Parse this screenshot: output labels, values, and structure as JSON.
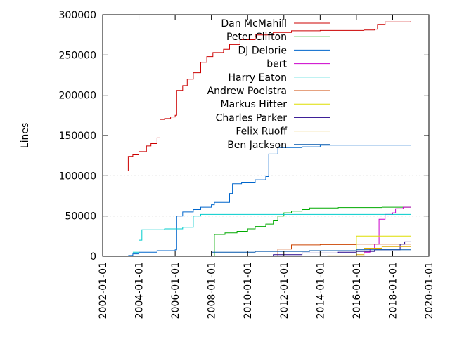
{
  "chart_data": {
    "type": "line",
    "ylabel": "Lines",
    "xlabel": "",
    "title": "",
    "xlim": [
      "2002-01-01",
      "2020-01-01"
    ],
    "ylim": [
      0,
      300000
    ],
    "x_ticks": [
      "2002-01-01",
      "2004-01-01",
      "2006-01-01",
      "2008-01-01",
      "2010-01-01",
      "2012-01-01",
      "2014-01-01",
      "2016-01-01",
      "2018-01-01",
      "2020-01-01"
    ],
    "y_ticks": [
      0,
      50000,
      100000,
      150000,
      200000,
      250000,
      300000
    ],
    "grid": {
      "y_dashed_lines": [
        50000,
        100000
      ]
    },
    "legend_position": "top-right",
    "series": [
      {
        "name": "Dan McMahill",
        "color": "#cc0000",
        "points": [
          [
            "2003-03-01",
            106000
          ],
          [
            "2003-06-01",
            124000
          ],
          [
            "2003-09-01",
            126000
          ],
          [
            "2004-01-01",
            130000
          ],
          [
            "2004-06-01",
            137000
          ],
          [
            "2004-09-01",
            140000
          ],
          [
            "2005-01-01",
            147000
          ],
          [
            "2005-03-01",
            170000
          ],
          [
            "2005-06-01",
            171000
          ],
          [
            "2005-10-01",
            173000
          ],
          [
            "2006-01-01",
            175000
          ],
          [
            "2006-02-01",
            206000
          ],
          [
            "2006-06-01",
            212000
          ],
          [
            "2006-09-01",
            220000
          ],
          [
            "2007-01-01",
            228000
          ],
          [
            "2007-06-01",
            241000
          ],
          [
            "2007-10-01",
            248000
          ],
          [
            "2008-02-01",
            253000
          ],
          [
            "2008-09-01",
            257000
          ],
          [
            "2009-01-01",
            263000
          ],
          [
            "2009-08-01",
            269000
          ],
          [
            "2010-06-01",
            275000
          ],
          [
            "2011-06-01",
            278000
          ],
          [
            "2012-06-01",
            280000
          ],
          [
            "2014-01-01",
            280500
          ],
          [
            "2016-06-01",
            281000
          ],
          [
            "2017-01-01",
            282000
          ],
          [
            "2017-03-01",
            288000
          ],
          [
            "2017-08-01",
            291000
          ],
          [
            "2019-01-01",
            292000
          ]
        ]
      },
      {
        "name": "Peter Clifton",
        "color": "#00aa00",
        "points": [
          [
            "2008-01-01",
            0
          ],
          [
            "2008-03-01",
            27000
          ],
          [
            "2008-10-01",
            29000
          ],
          [
            "2009-06-01",
            31000
          ],
          [
            "2010-01-01",
            34000
          ],
          [
            "2010-06-01",
            37000
          ],
          [
            "2011-01-01",
            40000
          ],
          [
            "2011-06-01",
            44000
          ],
          [
            "2011-09-01",
            50000
          ],
          [
            "2012-01-01",
            54000
          ],
          [
            "2012-06-01",
            56000
          ],
          [
            "2013-01-01",
            58000
          ],
          [
            "2013-06-01",
            60000
          ],
          [
            "2015-01-01",
            60500
          ],
          [
            "2017-06-01",
            61000
          ],
          [
            "2019-01-01",
            61000
          ]
        ]
      },
      {
        "name": "DJ Delorie",
        "color": "#0066cc",
        "points": [
          [
            "2003-06-01",
            1000
          ],
          [
            "2003-09-01",
            3000
          ],
          [
            "2004-01-01",
            5000
          ],
          [
            "2005-01-01",
            7000
          ],
          [
            "2006-01-01",
            8000
          ],
          [
            "2006-02-01",
            50000
          ],
          [
            "2006-06-01",
            55000
          ],
          [
            "2007-01-01",
            58000
          ],
          [
            "2007-06-01",
            61000
          ],
          [
            "2008-01-01",
            64000
          ],
          [
            "2008-03-01",
            67000
          ],
          [
            "2009-01-01",
            78000
          ],
          [
            "2009-03-01",
            90000
          ],
          [
            "2009-09-01",
            92000
          ],
          [
            "2010-06-01",
            95000
          ],
          [
            "2011-01-01",
            99000
          ],
          [
            "2011-03-01",
            127000
          ],
          [
            "2011-09-01",
            135000
          ],
          [
            "2013-01-01",
            136000
          ],
          [
            "2014-01-01",
            138000
          ],
          [
            "2019-01-01",
            138000
          ]
        ]
      },
      {
        "name": "bert",
        "color": "#cc00cc",
        "points": [
          [
            "2016-01-01",
            0
          ],
          [
            "2016-06-01",
            5000
          ],
          [
            "2016-10-01",
            10000
          ],
          [
            "2017-01-01",
            15000
          ],
          [
            "2017-04-01",
            46000
          ],
          [
            "2017-08-01",
            52000
          ],
          [
            "2018-01-01",
            54000
          ],
          [
            "2018-03-01",
            59000
          ],
          [
            "2018-08-01",
            61000
          ],
          [
            "2019-01-01",
            61000
          ]
        ]
      },
      {
        "name": "Harry Eaton",
        "color": "#00cccc",
        "points": [
          [
            "2003-09-01",
            5000
          ],
          [
            "2004-01-01",
            20000
          ],
          [
            "2004-03-01",
            33000
          ],
          [
            "2005-06-01",
            34000
          ],
          [
            "2006-06-01",
            36000
          ],
          [
            "2007-01-01",
            50000
          ],
          [
            "2007-06-01",
            52000
          ],
          [
            "2008-01-01",
            52000
          ],
          [
            "2019-01-01",
            52000
          ]
        ]
      },
      {
        "name": "Andrew Poelstra",
        "color": "#cc4400",
        "points": [
          [
            "2011-06-01",
            0
          ],
          [
            "2011-09-01",
            9000
          ],
          [
            "2012-06-01",
            14000
          ],
          [
            "2014-01-01",
            14500
          ],
          [
            "2016-01-01",
            15000
          ],
          [
            "2019-01-01",
            15000
          ]
        ]
      },
      {
        "name": "Markus Hitter",
        "color": "#dddd00",
        "points": [
          [
            "2015-06-01",
            0
          ],
          [
            "2016-01-01",
            25000
          ],
          [
            "2019-01-01",
            25000
          ]
        ]
      },
      {
        "name": "Charles Parker",
        "color": "#220088",
        "points": [
          [
            "2011-01-01",
            0
          ],
          [
            "2011-06-01",
            2000
          ],
          [
            "2013-01-01",
            4000
          ],
          [
            "2015-01-01",
            5000
          ],
          [
            "2016-01-01",
            6000
          ],
          [
            "2017-01-01",
            8000
          ],
          [
            "2018-06-01",
            15000
          ],
          [
            "2018-09-01",
            18000
          ],
          [
            "2019-01-01",
            18000
          ]
        ]
      },
      {
        "name": "Felix Ruoff",
        "color": "#ddaa00",
        "points": [
          [
            "2010-01-01",
            0
          ],
          [
            "2014-06-01",
            500
          ],
          [
            "2016-01-01",
            2000
          ],
          [
            "2016-06-01",
            10000
          ],
          [
            "2017-06-01",
            12000
          ],
          [
            "2019-01-01",
            12000
          ]
        ]
      },
      {
        "name": "Ben Jackson",
        "color": "#0055aa",
        "points": [
          [
            "2008-01-01",
            5000
          ],
          [
            "2010-06-01",
            6000
          ],
          [
            "2013-06-01",
            7000
          ],
          [
            "2016-01-01",
            8000
          ],
          [
            "2019-01-01",
            8000
          ]
        ]
      }
    ]
  }
}
